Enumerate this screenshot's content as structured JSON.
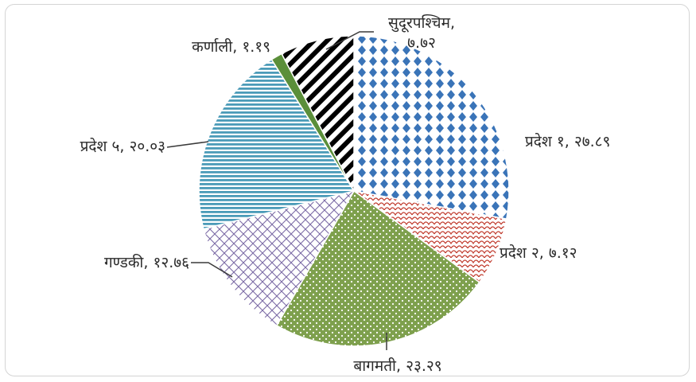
{
  "chart_data": {
    "type": "pie",
    "title": "",
    "slices": [
      {
        "label": "प्रदेश १",
        "value": 27.89,
        "value_text": "२७.८९",
        "pattern": "diamond-dots",
        "color": "#3a74b8"
      },
      {
        "label": "प्रदेश २",
        "value": 7.12,
        "value_text": "७.१२",
        "pattern": "red-scales",
        "color": "#c0392b"
      },
      {
        "label": "बागमती",
        "value": 23.29,
        "value_text": "२३.२९",
        "pattern": "dots-on-green",
        "color": "#7ea04d"
      },
      {
        "label": "गण्डकी",
        "value": 12.76,
        "value_text": "१२.७६",
        "pattern": "purple-lattice",
        "color": "#7b6aa5"
      },
      {
        "label": "प्रदेश ५",
        "value": 20.03,
        "value_text": "२०.०३",
        "pattern": "horizontal-stripes",
        "color": "#4b9bb8"
      },
      {
        "label": "कर्णाली",
        "value": 1.19,
        "value_text": "१.१९",
        "pattern": "solid",
        "color": "#5b8f3a"
      },
      {
        "label": "सुदूरपश्चिम",
        "value": 7.72,
        "value_text": "७.७२",
        "pattern": "diagonal-stripes",
        "color": "#000000"
      }
    ]
  }
}
